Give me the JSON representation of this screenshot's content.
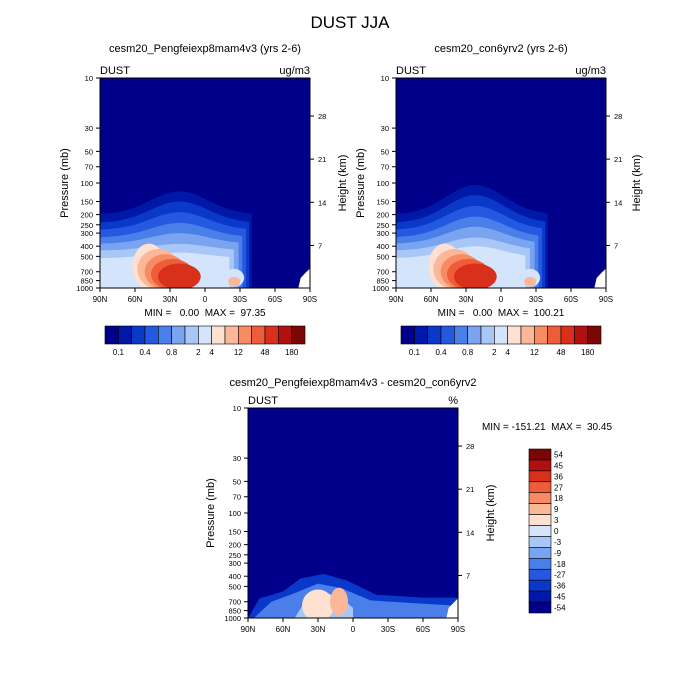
{
  "title": "DUST JJA",
  "colors": {
    "abs_scale": [
      "#00008b",
      "#0018a8",
      "#0a38c8",
      "#2458e0",
      "#4a7ee8",
      "#7aa4f0",
      "#a8c6f6",
      "#d4e4fb",
      "#fde0cf",
      "#fbb898",
      "#f78c64",
      "#ef5c3a",
      "#d9301c",
      "#b01010",
      "#7a0606"
    ],
    "diff_scale": [
      "#00008b",
      "#0018a8",
      "#0a38c8",
      "#2458e0",
      "#4a7ee8",
      "#7aa4f0",
      "#a8c6f6",
      "#d4e4fb",
      "#fde0cf",
      "#fbb898",
      "#f78c64",
      "#ef5c3a",
      "#d9301c",
      "#b01010",
      "#7a0606"
    ],
    "ocean": "#000a96",
    "terrain": "#ffffff"
  },
  "chart_data": [
    {
      "type": "contour",
      "title": "cesm20_Pengfeiexp8mam4v3 (yrs 2-6)",
      "left_label": "DUST",
      "right_label": "ug/m3",
      "xlabel": "",
      "ylabel": "Pressure (mb)",
      "y2label": "Height (km)",
      "x_ticks": [
        "90N",
        "60N",
        "30N",
        "0",
        "30S",
        "60S",
        "90S"
      ],
      "x_values": [
        90,
        60,
        30,
        0,
        -30,
        -60,
        -90
      ],
      "y_ticks": [
        "10",
        "30",
        "50",
        "70",
        "100",
        "150",
        "200",
        "250",
        "300",
        "400",
        "500",
        "700",
        "850",
        "1000"
      ],
      "y_values": [
        10,
        30,
        50,
        70,
        100,
        150,
        200,
        250,
        300,
        400,
        500,
        700,
        850,
        1000
      ],
      "y2_ticks": [
        "28",
        "21",
        "14",
        "7"
      ],
      "y2_values": [
        28,
        21,
        14,
        7
      ],
      "min_max": "MIN =   0.00  MAX =  97.35",
      "colorbar_labels": [
        "0.1",
        "0.4",
        "0.8",
        "2",
        "4",
        "12",
        "48",
        "180"
      ]
    },
    {
      "type": "contour",
      "title": "cesm20_con6yrv2 (yrs 2-6)",
      "left_label": "DUST",
      "right_label": "ug/m3",
      "xlabel": "",
      "ylabel": "Pressure (mb)",
      "y2label": "Height (km)",
      "x_ticks": [
        "90N",
        "60N",
        "30N",
        "0",
        "30S",
        "60S",
        "90S"
      ],
      "x_values": [
        90,
        60,
        30,
        0,
        -30,
        -60,
        -90
      ],
      "y_ticks": [
        "10",
        "30",
        "50",
        "70",
        "100",
        "150",
        "200",
        "250",
        "300",
        "400",
        "500",
        "700",
        "850",
        "1000"
      ],
      "y_values": [
        10,
        30,
        50,
        70,
        100,
        150,
        200,
        250,
        300,
        400,
        500,
        700,
        850,
        1000
      ],
      "y2_ticks": [
        "28",
        "21",
        "14",
        "7"
      ],
      "y2_values": [
        28,
        21,
        14,
        7
      ],
      "min_max": "MIN =   0.00  MAX =  100.21",
      "colorbar_labels": [
        "0.1",
        "0.4",
        "0.8",
        "2",
        "4",
        "12",
        "48",
        "180"
      ]
    },
    {
      "type": "contour",
      "title": "cesm20_Pengfeiexp8mam4v3 - cesm20_con6yrv2",
      "left_label": "DUST",
      "right_label": "%",
      "xlabel": "",
      "ylabel": "Pressure (mb)",
      "y2label": "Height (km)",
      "x_ticks": [
        "90N",
        "60N",
        "30N",
        "0",
        "30S",
        "60S",
        "90S"
      ],
      "x_values": [
        90,
        60,
        30,
        0,
        -30,
        -60,
        -90
      ],
      "y_ticks": [
        "10",
        "30",
        "50",
        "70",
        "100",
        "150",
        "200",
        "250",
        "300",
        "400",
        "500",
        "700",
        "850",
        "1000"
      ],
      "y_values": [
        10,
        30,
        50,
        70,
        100,
        150,
        200,
        250,
        300,
        400,
        500,
        700,
        850,
        1000
      ],
      "y2_ticks": [
        "28",
        "21",
        "14",
        "7"
      ],
      "y2_values": [
        28,
        21,
        14,
        7
      ],
      "min_max": "MIN = -151.21  MAX =  30.45",
      "colorbar_labels": [
        "54",
        "45",
        "36",
        "27",
        "18",
        "9",
        "3",
        "0",
        "-3",
        "-9",
        "-18",
        "-27",
        "-36",
        "-45",
        "-54"
      ]
    }
  ]
}
